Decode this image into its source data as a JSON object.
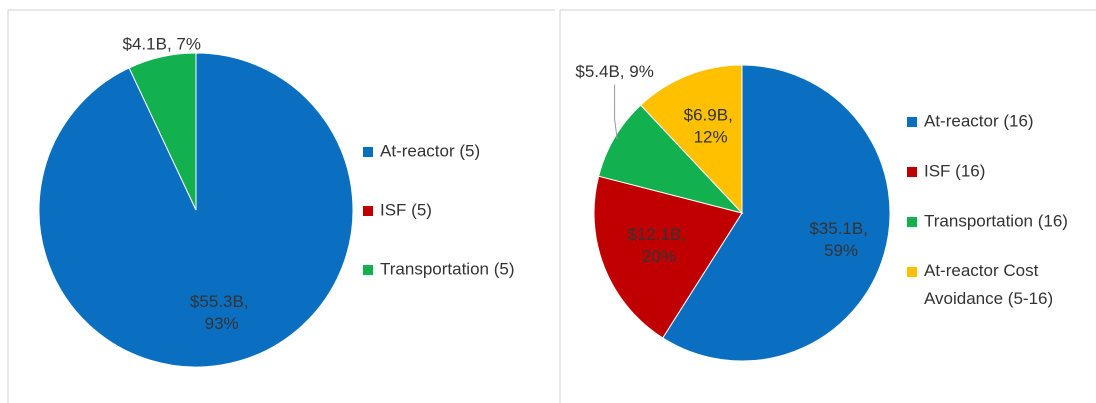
{
  "chart_data": [
    {
      "type": "pie",
      "categories": [
        "At-reactor (5)",
        "ISF (5)",
        "Transportation (5)"
      ],
      "values": [
        93,
        0,
        7
      ],
      "value_labels": [
        "$55.3B, 93%",
        null,
        "$4.1B, 7%"
      ],
      "colors": [
        "#0b6fc1",
        "#c00000",
        "#13b050"
      ]
    },
    {
      "type": "pie",
      "categories": [
        "At-reactor (16)",
        "ISF (16)",
        "Transportation (16)",
        "At-reactor Cost Avoidance (5-16)"
      ],
      "values": [
        59,
        20,
        9,
        12
      ],
      "value_labels": [
        "$35.1B, 59%",
        "$12.1B, 20%",
        "$5.4B, 9%",
        "$6.9B, 12%"
      ],
      "colors": [
        "#0b6fc1",
        "#c00000",
        "#13b050",
        "#ffc000"
      ]
    }
  ]
}
